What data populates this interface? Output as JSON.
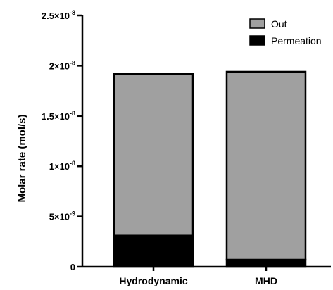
{
  "chart_data": {
    "type": "bar",
    "stacked": true,
    "categories": [
      "Hydrodynamic",
      "MHD"
    ],
    "series": [
      {
        "name": "Permeation",
        "values": [
          3.1e-09,
          7e-10
        ],
        "color": "#000000"
      },
      {
        "name": "Out",
        "values": [
          1.61e-08,
          1.87e-08
        ],
        "color": "#a0a0a0"
      }
    ],
    "ylabel": "Molar rate (mol/s)",
    "ylim": [
      0,
      2.5e-08
    ],
    "yticks": [
      {
        "value": 0,
        "base": "0",
        "exp": ""
      },
      {
        "value": 5e-09,
        "base": "5×10",
        "exp": "-9"
      },
      {
        "value": 1e-08,
        "base": "1×10",
        "exp": "-8"
      },
      {
        "value": 1.5e-08,
        "base": "1.5×10",
        "exp": "-8"
      },
      {
        "value": 2e-08,
        "base": "2×10",
        "exp": "-8"
      },
      {
        "value": 2.5e-08,
        "base": "2.5×10",
        "exp": "-8"
      }
    ],
    "legend_position": "top-right",
    "legend_order": [
      "Out",
      "Permeation"
    ],
    "grid": false
  }
}
